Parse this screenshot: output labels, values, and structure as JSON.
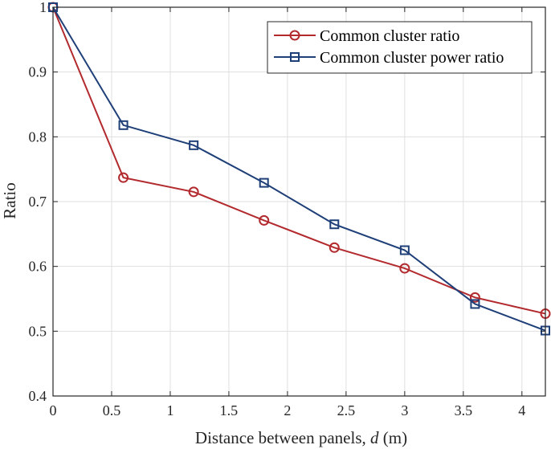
{
  "colors": {
    "series_1": "#b22a2e",
    "series_2": "#1f3f78",
    "axis": "#262626",
    "grid": "#dfdfdf"
  },
  "chart_data": {
    "type": "line",
    "title": "",
    "xlabel_prefix": "Distance between panels, ",
    "xlabel_var": "d",
    "xlabel_unit": " (m)",
    "ylabel": "Ratio",
    "xlim": [
      0,
      4.2
    ],
    "ylim": [
      0.4,
      1.0
    ],
    "grid": true,
    "legend_position": "top-right",
    "xticks": [
      0,
      0.5,
      1,
      1.5,
      2,
      2.5,
      3,
      3.5,
      4
    ],
    "xtick_labels": [
      "0",
      "0.5",
      "1",
      "1.5",
      "2",
      "2.5",
      "3",
      "3.5",
      "4"
    ],
    "yticks": [
      0.4,
      0.5,
      0.6,
      0.7,
      0.8,
      0.9,
      1.0
    ],
    "ytick_labels": [
      "0.4",
      "0.5",
      "0.6",
      "0.7",
      "0.8",
      "0.9",
      "1"
    ],
    "x": [
      0,
      0.6,
      1.2,
      1.8,
      2.4,
      3.0,
      3.6,
      4.2
    ],
    "series": [
      {
        "name": "Common cluster ratio",
        "marker": "circle",
        "color": "#b22a2e",
        "values": [
          1.0,
          0.737,
          0.715,
          0.671,
          0.629,
          0.597,
          0.552,
          0.527
        ]
      },
      {
        "name": "Common cluster power ratio",
        "marker": "square",
        "color": "#1f3f78",
        "values": [
          1.0,
          0.818,
          0.787,
          0.729,
          0.665,
          0.625,
          0.542,
          0.501
        ]
      }
    ]
  }
}
